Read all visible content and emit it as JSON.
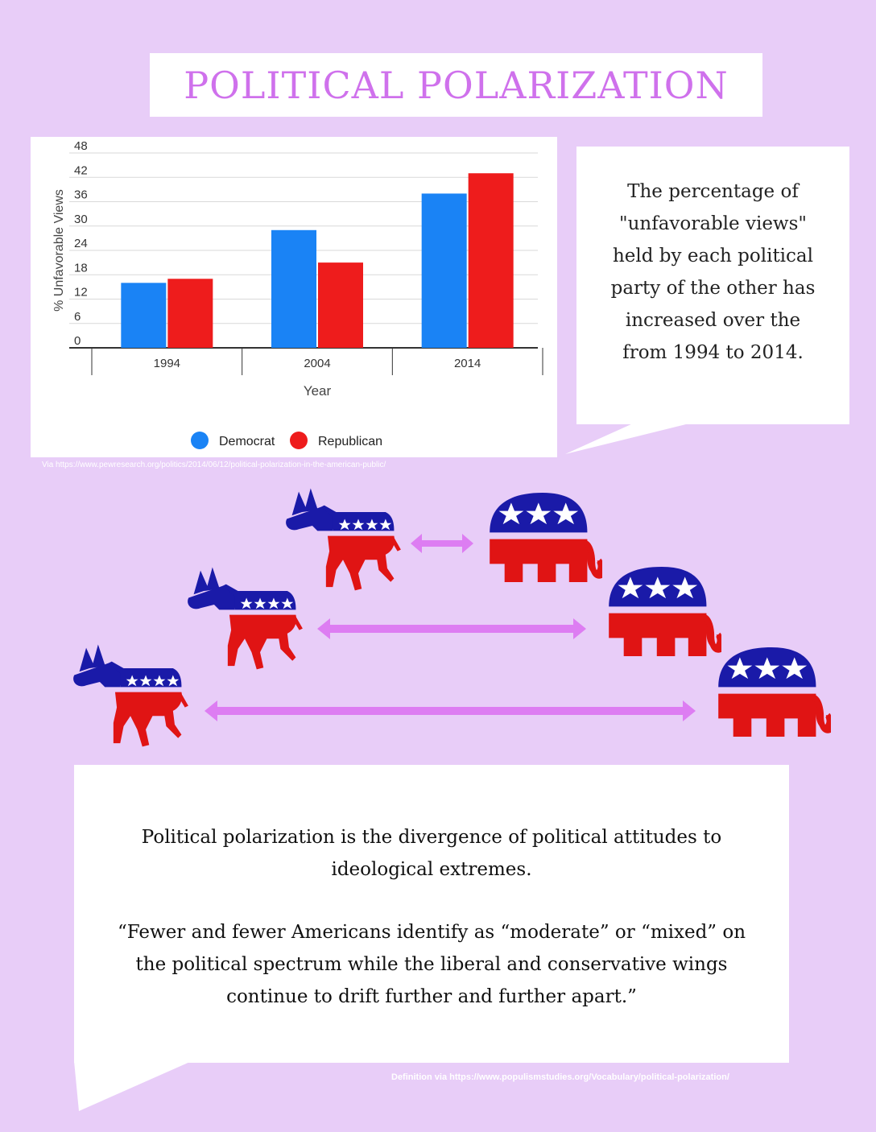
{
  "title": "POLITICAL POLARIZATION",
  "chart_data": {
    "type": "bar",
    "categories": [
      "1994",
      "2004",
      "2014"
    ],
    "series": [
      {
        "name": "Democrat",
        "values": [
          16,
          29,
          38
        ],
        "color": "#1a83f5"
      },
      {
        "name": "Republican",
        "values": [
          17,
          21,
          43
        ],
        "color": "#ee1c1c"
      }
    ],
    "xlabel": "Year",
    "ylabel": "% Unfavorable Views",
    "yticks": [
      0,
      6,
      12,
      18,
      24,
      30,
      36,
      42,
      48
    ],
    "ylim": [
      0,
      48
    ],
    "grid": true,
    "legend_position": "bottom"
  },
  "chart_source": "Via https://www.pewresearch.org/politics/2014/06/12/political-polarization-in-the-american-public/",
  "callout": "The percentage of \"unfavorable views\" held by each political party of the other has increased over the from 1994 to 2014.",
  "definition": "Political polarization is the divergence of political attitudes to ideological extremes.",
  "quote": "“Fewer and fewer Americans identify as “moderate” or “mixed” on the political spectrum while the liberal and conservative wings continue to drift further and further apart.”",
  "definition_source": "Definition via https://www.populismstudies.org/Vocabulary/political-polarization/",
  "illustration": {
    "icons": [
      "donkey-icon",
      "elephant-icon",
      "double-arrow-icon"
    ],
    "colors": {
      "blue": "#1a1aa8",
      "red": "#e01414",
      "arrow": "#dd7df2"
    }
  }
}
